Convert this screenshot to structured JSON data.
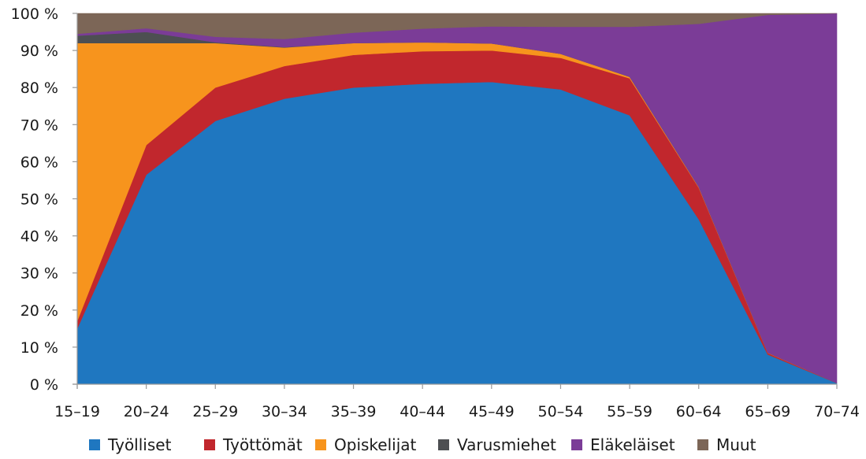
{
  "chart_data": {
    "type": "area",
    "stacked": "percent",
    "title": "",
    "xlabel": "",
    "ylabel": "",
    "ylim": [
      0,
      100
    ],
    "y_ticks": [
      "0 %",
      "10 %",
      "20 %",
      "30 %",
      "40 %",
      "50 %",
      "60 %",
      "70 %",
      "80 %",
      "90 %",
      "100 %"
    ],
    "categories": [
      "15–19",
      "20–24",
      "25–29",
      "30–34",
      "35–39",
      "40–44",
      "45–49",
      "50–54",
      "55–59",
      "60–64",
      "65–69",
      "70–74"
    ],
    "grid": false,
    "legend_position": "bottom",
    "series": [
      {
        "name": "Työlliset",
        "color": "#1f77c0",
        "values": [
          15,
          56.5,
          71,
          77,
          80,
          81,
          81.5,
          79.5,
          72.5,
          44.5,
          8,
          0.3
        ]
      },
      {
        "name": "Työttömät",
        "color": "#c1272d",
        "values": [
          2,
          8,
          9,
          8.8,
          8.8,
          8.8,
          8.5,
          8.5,
          10,
          8.5,
          0.4,
          0
        ]
      },
      {
        "name": "Opiskelijat",
        "color": "#f7941d",
        "values": [
          75,
          27.5,
          12,
          5,
          3.2,
          2.4,
          1.9,
          1.1,
          0.4,
          0.2,
          0.1,
          0
        ]
      },
      {
        "name": "Varusmiehet",
        "color": "#4d4f52",
        "values": [
          2,
          3,
          0.2,
          0.1,
          0,
          0,
          0,
          0,
          0,
          0,
          0,
          0
        ]
      },
      {
        "name": "Eläkeläiset",
        "color": "#7b3c97",
        "values": [
          0.5,
          1,
          1.5,
          2.2,
          2.8,
          3.7,
          4.6,
          7.3,
          13.5,
          44,
          91.1,
          99.7
        ]
      },
      {
        "name": "Muut",
        "color": "#7c6657",
        "values": [
          5.5,
          4,
          6.3,
          6.9,
          5.2,
          4.1,
          3.5,
          3.6,
          3.6,
          2.8,
          0.4,
          0
        ]
      }
    ]
  }
}
